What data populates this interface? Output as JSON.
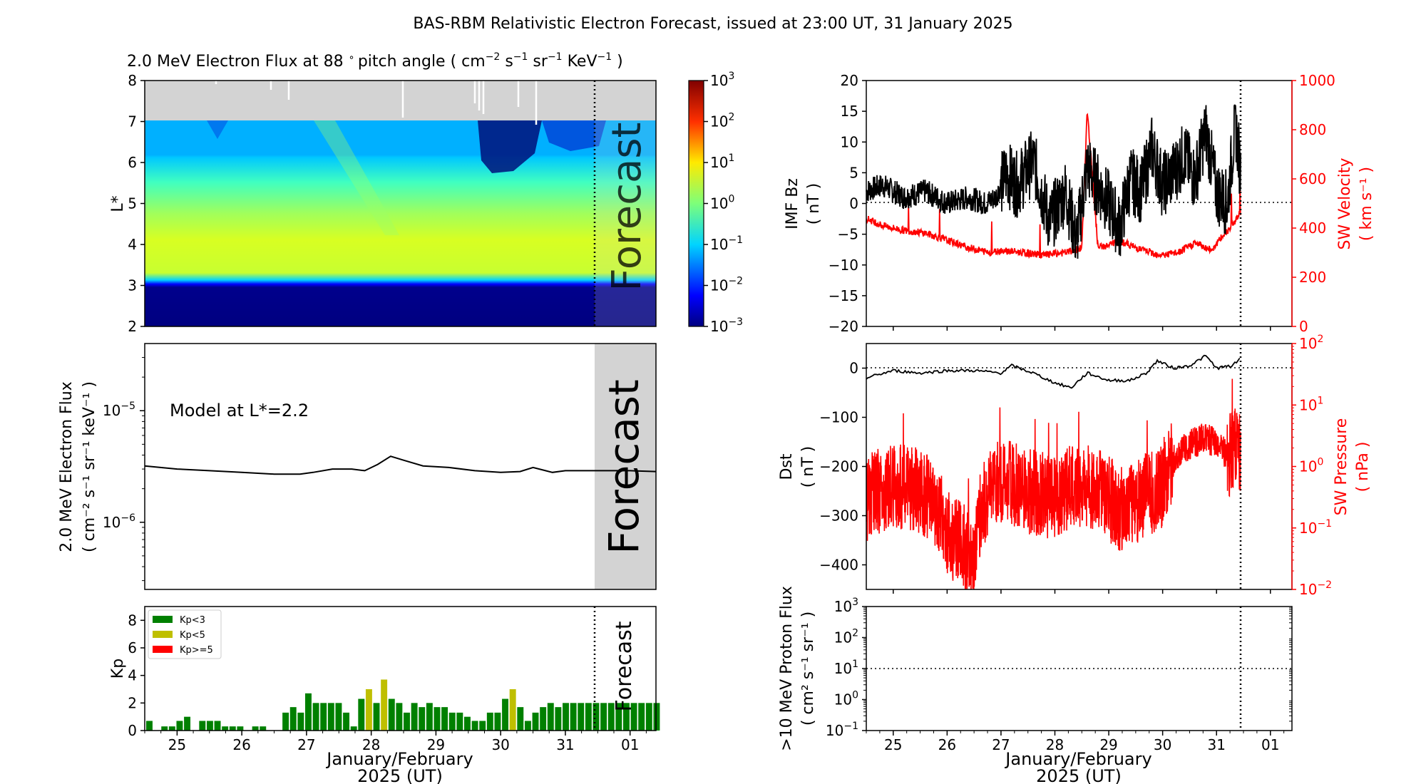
{
  "title": "BAS-RBM Relativistic Electron Forecast, issued at 23:00 UT, 31 January 2025",
  "colors": {
    "frame": "#000000",
    "red": "#ff0000",
    "kp_low": "#008000",
    "kp_mid": "#bfbf00",
    "kp_high": "#ff0000",
    "forecast_shade": "#d3d3d3",
    "nodata": "#d3d3d3"
  },
  "x_axis": {
    "ticks": [
      "25",
      "26",
      "27",
      "28",
      "29",
      "30",
      "31",
      "01"
    ],
    "label_line1": "January/February",
    "label_line2": "2025 (UT)"
  },
  "forecast_label": "Forecast",
  "heatmap": {
    "title_prefix": "2.0 MeV Electron Flux at 88",
    "title_units": "pitch angle ( cm",
    "ylabel": "L*",
    "y_ticks": [
      "2",
      "3",
      "4",
      "5",
      "6",
      "7",
      "8"
    ],
    "colorbar_ticks": [
      "10",
      "10",
      "10",
      "10",
      "10",
      "10",
      "10"
    ],
    "colorbar_exponents": [
      "3",
      "2",
      "1",
      "0",
      "−1",
      "−2",
      "−3"
    ]
  },
  "flux_panel": {
    "ylabel_line1": "2.0 MeV Electron Flux",
    "ylabel_line2": "( cm⁻² s⁻¹ sr⁻¹ keV⁻¹ )",
    "y_ticks": [
      "10",
      "10"
    ],
    "y_exponents": [
      "−5",
      "−6"
    ],
    "annotation": "Model at L*=2.2"
  },
  "kp_panel": {
    "ylabel": "Kp",
    "y_ticks": [
      "0",
      "2",
      "4",
      "6",
      "8"
    ],
    "legend": [
      "Kp<3",
      "Kp<5",
      "Kp>=5"
    ]
  },
  "imf_panel": {
    "ylabel_line1": "IMF Bz",
    "ylabel_line2": "( nT )",
    "y_ticks": [
      "20",
      "15",
      "10",
      "5",
      "0",
      "−5",
      "−10",
      "−15",
      "−20"
    ],
    "right_label_line1": "SW Velocity",
    "right_label_line2": "( km s⁻¹ )",
    "right_ticks": [
      "1000",
      "800",
      "600",
      "400",
      "200",
      "0"
    ]
  },
  "dst_panel": {
    "ylabel_line1": "Dst",
    "ylabel_line2": "( nT )",
    "y_ticks": [
      "0",
      "−100",
      "−200",
      "−300",
      "−400"
    ],
    "right_label_line1": "SW Pressure",
    "right_label_line2": "( nPa )",
    "right_ticks": [
      "10",
      "10",
      "10",
      "10",
      "10"
    ],
    "right_exponents": [
      "2",
      "1",
      "0",
      "−1",
      "−2"
    ]
  },
  "proton_panel": {
    "ylabel_line1": ">10 MeV Proton Flux",
    "ylabel_line2": "( cm² s⁻¹ sr⁻¹ )",
    "y_ticks": [
      "10",
      "10",
      "10",
      "10",
      "10"
    ],
    "y_exponents": [
      "3",
      "2",
      "1",
      "0",
      "−1"
    ]
  },
  "chart_data": [
    {
      "type": "heatmap",
      "xlabel": "",
      "ylabel": "L*",
      "ylim": [
        2,
        8
      ],
      "x_range_days": [
        24.5,
        32.4
      ],
      "colorbar_range_log10": [
        -3,
        3
      ],
      "issue_time_day": 31.46
    },
    {
      "type": "line",
      "ylabel": "2.0 MeV Electron Flux",
      "log_y": true,
      "ylim": [
        2.5e-07,
        4e-05
      ],
      "x": [
        24.5,
        25.0,
        25.5,
        26.0,
        26.5,
        26.9,
        27.1,
        27.4,
        27.7,
        27.9,
        28.1,
        28.3,
        28.5,
        28.8,
        29.2,
        29.6,
        30.0,
        30.3,
        30.5,
        30.8,
        31.0,
        31.5,
        32.0,
        32.4
      ],
      "values": [
        3.2e-06,
        3e-06,
        2.9e-06,
        2.8e-06,
        2.7e-06,
        2.7e-06,
        2.8e-06,
        3e-06,
        3e-06,
        2.9e-06,
        3.3e-06,
        3.9e-06,
        3.6e-06,
        3.2e-06,
        3.1e-06,
        2.9e-06,
        2.8e-06,
        2.85e-06,
        3.1e-06,
        2.8e-06,
        2.9e-06,
        2.9e-06,
        2.9e-06,
        2.85e-06
      ]
    },
    {
      "type": "bar",
      "ylabel": "Kp",
      "ylim": [
        0,
        9
      ],
      "bar_width_days": 0.1,
      "kp": [
        0.7,
        0,
        0.3,
        0.3,
        0.7,
        1.0,
        0,
        0.7,
        0.7,
        0.7,
        0.3,
        0.3,
        0.3,
        0,
        0.3,
        0.3,
        0,
        0,
        1.3,
        1.7,
        1.3,
        2.7,
        2.0,
        2.0,
        2.0,
        2.0,
        1.3,
        0.3,
        2.3,
        3.0,
        2.0,
        3.7,
        2.3,
        2.0,
        1.3,
        2.0,
        1.7,
        2.0,
        1.7,
        1.7,
        1.3,
        1.3,
        1.0,
        0.7,
        0.7,
        1.3,
        1.3,
        2.3,
        3.0,
        1.7,
        0.7,
        1.3,
        1.7,
        2.0,
        1.7,
        2.0,
        2.0,
        2.0,
        2.0,
        2.0,
        2.0,
        2.0,
        2.0,
        2.0,
        2.0,
        2.0,
        2.0,
        2.0
      ]
    },
    {
      "type": "line",
      "ylabel": "IMF Bz",
      "ylim": [
        -20,
        20
      ],
      "right_ylim": [
        0,
        1000
      ],
      "series": [
        {
          "color": "#000000",
          "x": [
            24.5,
            24.8,
            25.2,
            25.6,
            26.0,
            26.4,
            26.7,
            26.9,
            27.1,
            27.3,
            27.6,
            27.9,
            28.2,
            28.4,
            28.6,
            28.8,
            29.0,
            29.2,
            29.4,
            29.6,
            29.8,
            30.0,
            30.2,
            30.4,
            30.6,
            30.8,
            31.0,
            31.2,
            31.35,
            31.45
          ],
          "values": [
            2,
            3,
            1,
            2,
            0,
            1,
            0,
            1,
            5,
            3,
            7,
            -3,
            2,
            -6,
            6,
            3,
            0,
            -4,
            4,
            2,
            9,
            3,
            5,
            8,
            4,
            12,
            2,
            0,
            13,
            5
          ]
        },
        {
          "color": "#ff0000",
          "axis": "right",
          "x": [
            24.5,
            24.8,
            25.2,
            25.6,
            26.0,
            26.4,
            26.8,
            27.0,
            27.4,
            27.8,
            28.2,
            28.5,
            28.6,
            28.8,
            29.0,
            29.2,
            29.5,
            29.8,
            30.0,
            30.3,
            30.6,
            30.9,
            31.2,
            31.45
          ],
          "values": [
            440,
            410,
            390,
            380,
            350,
            320,
            300,
            310,
            300,
            290,
            300,
            320,
            880,
            320,
            330,
            350,
            320,
            300,
            290,
            300,
            340,
            310,
            390,
            460
          ]
        }
      ]
    },
    {
      "type": "line",
      "ylabel": "Dst",
      "ylim": [
        -450,
        50
      ],
      "right_log_y": true,
      "right_ylim": [
        0.01,
        100
      ],
      "series": [
        {
          "color": "#000000",
          "x": [
            24.5,
            25.0,
            25.5,
            26.0,
            26.5,
            27.0,
            27.2,
            27.6,
            28.0,
            28.3,
            28.6,
            29.0,
            29.4,
            29.7,
            29.9,
            30.2,
            30.5,
            30.8,
            31.0,
            31.3,
            31.45
          ],
          "values": [
            -20,
            -5,
            -10,
            -5,
            -5,
            -10,
            5,
            -10,
            -30,
            -40,
            -10,
            -25,
            -25,
            -10,
            15,
            0,
            5,
            25,
            0,
            5,
            20
          ]
        },
        {
          "color": "#ff0000",
          "axis": "right",
          "x": [
            24.5,
            25.0,
            25.5,
            26.0,
            26.5,
            27.0,
            27.5,
            28.0,
            28.4,
            28.8,
            29.2,
            29.6,
            30.0,
            30.4,
            30.8,
            31.2,
            31.45
          ],
          "values": [
            0.3,
            0.5,
            0.4,
            0.08,
            0.03,
            0.6,
            0.4,
            0.3,
            0.5,
            0.4,
            0.2,
            0.3,
            0.5,
            2.0,
            3.0,
            1.5,
            2.0
          ]
        }
      ]
    },
    {
      "type": "line",
      "ylabel": ">10 MeV Proton Flux",
      "log_y": true,
      "ylim": [
        0.1,
        1000
      ],
      "threshold": 10
    }
  ]
}
